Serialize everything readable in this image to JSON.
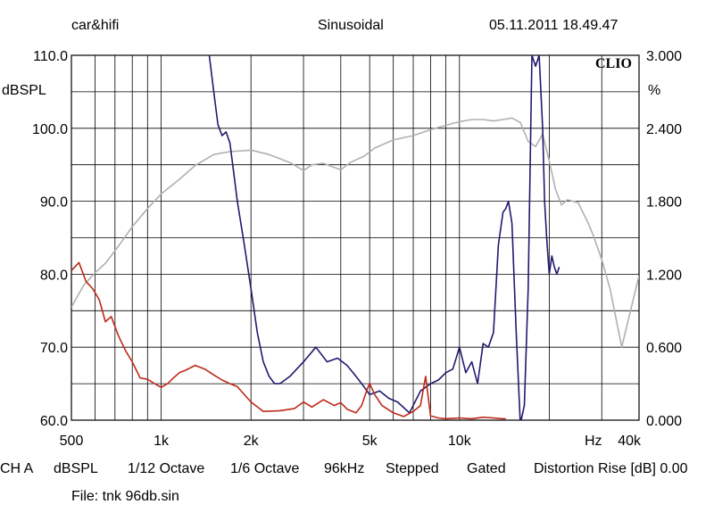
{
  "header": {
    "left": "car&hifi",
    "center": "Sinusoidal",
    "right": "05.11.2011 18.49.47"
  },
  "logo": "CLIO",
  "footer": {
    "ch": "CH A",
    "unit": "dBSPL",
    "smoothing": "1/12 Octave",
    "resolution": "1/6 Octave",
    "rate": "96kHz",
    "mode": "Stepped",
    "gating": "Gated",
    "distortion": "Distortion Rise [dB] 0.00",
    "file": "File: tnk 96db.sin"
  },
  "chart_data": {
    "type": "line",
    "xscale": "log",
    "xlim": [
      500,
      40000
    ],
    "ylim": [
      60,
      110
    ],
    "y2lim": [
      0,
      3
    ],
    "ylabel": "dBSPL",
    "y2label": "%",
    "xunit": "Hz",
    "grid": true,
    "xticks": [
      {
        "value": 500,
        "label": "500"
      },
      {
        "value": 1000,
        "label": "1k"
      },
      {
        "value": 2000,
        "label": "2k"
      },
      {
        "value": 5000,
        "label": "5k"
      },
      {
        "value": 10000,
        "label": "10k"
      },
      {
        "value": 40000,
        "label": "40k"
      }
    ],
    "yticks": [
      {
        "value": 110,
        "label": "110.0"
      },
      {
        "value": 100,
        "label": "100.0"
      },
      {
        "value": 90,
        "label": "90.0"
      },
      {
        "value": 80,
        "label": "80.0"
      },
      {
        "value": 70,
        "label": "70.0"
      },
      {
        "value": 60,
        "label": "60.0"
      }
    ],
    "y2ticks": [
      {
        "value": 3.0,
        "label": "3.000"
      },
      {
        "value": 2.4,
        "label": "2.400"
      },
      {
        "value": 1.8,
        "label": "1.800"
      },
      {
        "value": 1.2,
        "label": "1.200"
      },
      {
        "value": 0.6,
        "label": "0.600"
      },
      {
        "value": 0.0,
        "label": "0.000"
      }
    ],
    "series": [
      {
        "color": "#b0b0b0",
        "axis": "y",
        "x": [
          500,
          550,
          600,
          650,
          700,
          800,
          900,
          1000,
          1150,
          1300,
          1500,
          1700,
          2000,
          2300,
          2700,
          3000,
          3200,
          3500,
          4000,
          4300,
          4800,
          5200,
          6000,
          7000,
          8000,
          9000,
          10000,
          11000,
          12000,
          13000,
          14000,
          15000,
          16000,
          17000,
          18000,
          19000,
          20000,
          21000,
          22000,
          23000,
          25000,
          27000,
          28000,
          30000,
          32000,
          35000,
          40000
        ],
        "y": [
          75.5,
          78.5,
          80.2,
          81.5,
          83.2,
          86.5,
          89.0,
          91.0,
          93.0,
          94.9,
          96.4,
          96.8,
          97.0,
          96.4,
          95.3,
          94.2,
          95.0,
          95.2,
          94.3,
          95.3,
          96.2,
          97.3,
          98.4,
          99.0,
          99.8,
          100.4,
          100.9,
          101.2,
          101.2,
          101.0,
          101.2,
          101.4,
          100.8,
          98.2,
          97.5,
          99.2,
          95.5,
          91.6,
          89.5,
          90.2,
          89.8,
          87.0,
          85.5,
          82.0,
          78.0,
          70.0,
          79.8
        ]
      },
      {
        "color": "#1f1a6e",
        "axis": "y",
        "x": [
          1450,
          1500,
          1550,
          1600,
          1650,
          1700,
          1750,
          1800,
          1900,
          2000,
          2100,
          2200,
          2300,
          2400,
          2500,
          2700,
          3000,
          3300,
          3600,
          3900,
          4200,
          4500,
          4800,
          5000,
          5400,
          5800,
          6200,
          6800,
          7400,
          8000,
          8500,
          9000,
          9500,
          10000,
          10500,
          11000,
          11500,
          12000,
          12500,
          13000,
          13500,
          14000,
          14300,
          14600,
          15000,
          15500,
          16000,
          16500,
          17000,
          17500,
          18000,
          18500,
          19000,
          19300,
          19600,
          20000,
          20400,
          20800,
          21200,
          21600
        ],
        "y": [
          110.0,
          105.0,
          100.5,
          99.0,
          99.5,
          98.0,
          94.0,
          90.0,
          84.0,
          78.0,
          72.0,
          68.0,
          66.0,
          65.0,
          65.0,
          66.0,
          68.0,
          70.0,
          68.0,
          68.5,
          67.5,
          66.0,
          64.5,
          63.5,
          64.0,
          63.0,
          62.5,
          61.0,
          64.0,
          65.0,
          65.5,
          66.5,
          67.0,
          70.0,
          66.5,
          68.0,
          65.0,
          70.5,
          70.0,
          72.0,
          84.0,
          88.5,
          89.0,
          90.0,
          87.0,
          72.0,
          59.5,
          62.0,
          78.0,
          110.0,
          108.5,
          110.0,
          100.0,
          90.0,
          85.0,
          80.0,
          82.5,
          81.0,
          80.0,
          81.0
        ]
      },
      {
        "color": "#c0281a",
        "axis": "y",
        "x": [
          500,
          530,
          560,
          590,
          620,
          650,
          680,
          720,
          760,
          800,
          850,
          900,
          950,
          1000,
          1050,
          1100,
          1150,
          1200,
          1300,
          1400,
          1500,
          1600,
          1700,
          1800,
          1900,
          2000,
          2200,
          2500,
          2800,
          3000,
          3200,
          3500,
          3800,
          4000,
          4200,
          4500,
          4700,
          4900,
          5000,
          5200,
          5500,
          6000,
          6500,
          7000,
          7400,
          7700,
          8000,
          8500,
          9000,
          10000,
          11000,
          12000,
          13000,
          14000,
          14300
        ],
        "y": [
          80.5,
          81.6,
          79.0,
          78.0,
          76.5,
          73.5,
          74.2,
          71.5,
          69.5,
          68.0,
          65.8,
          65.6,
          65.0,
          64.5,
          65.0,
          65.8,
          66.5,
          66.8,
          67.5,
          67.0,
          66.2,
          65.5,
          65.0,
          64.6,
          63.5,
          62.5,
          61.2,
          61.3,
          61.6,
          62.5,
          61.8,
          62.8,
          62.0,
          62.4,
          61.5,
          61.0,
          62.0,
          64.2,
          65.0,
          63.5,
          62.0,
          61.0,
          60.5,
          61.2,
          62.0,
          66.0,
          60.6,
          60.3,
          60.2,
          60.3,
          60.2,
          60.4,
          60.3,
          60.2,
          60.2
        ]
      }
    ]
  }
}
